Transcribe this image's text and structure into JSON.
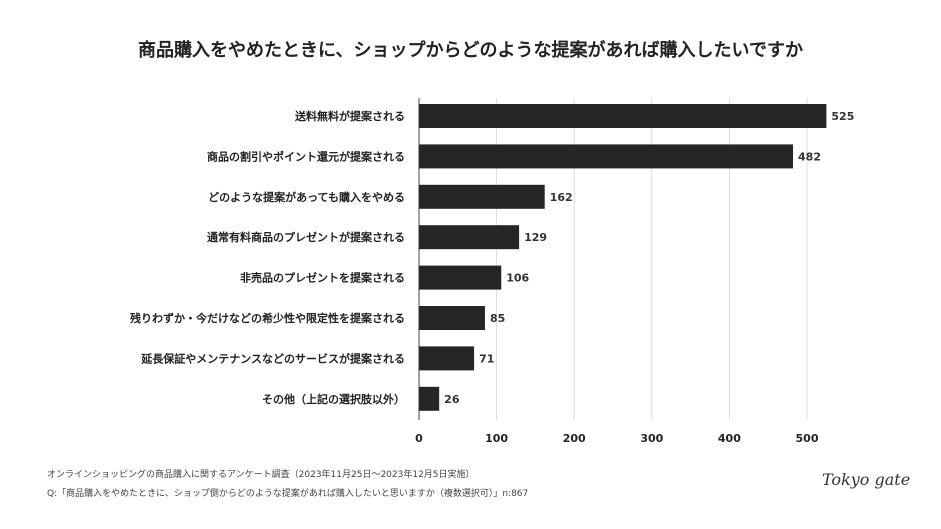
{
  "chart_data": {
    "type": "bar",
    "orientation": "horizontal",
    "title": "商品購入をやめたときに、ショップからどのような提案があれば購入したいですか",
    "categories": [
      "送料無料が提案される",
      "商品の割引やポイント還元が提案される",
      "どのような提案があっても購入をやめる",
      "通常有料商品のプレゼントが提案される",
      "非売品のプレゼントを提案される",
      "残りわずか・今だけなどの希少性や限定性を提案される",
      "延長保証やメンテナンスなどのサービスが提案される",
      "その他（上記の選択肢以外）"
    ],
    "values": [
      525,
      482,
      162,
      129,
      106,
      85,
      71,
      26
    ],
    "xlim": [
      0,
      540
    ],
    "xticks": [
      "0",
      "100",
      "200",
      "300",
      "400",
      "500"
    ],
    "grid": true,
    "bar_color": "#262626",
    "data_labels": true
  },
  "footer": {
    "survey": "オンラインショッピングの商品購入に関するアンケート調査（2023年11月25日〜2023年12月5日実施）",
    "question": "Q:「商品購入をやめたときに、ショップ側からどのような提案があれば購入したいと思いますか（複数選択可）」n:867"
  },
  "logo": "Tokyo gate"
}
